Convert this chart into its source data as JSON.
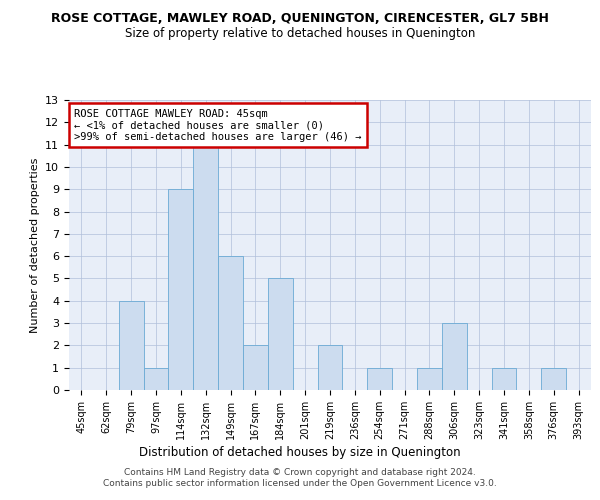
{
  "title": "ROSE COTTAGE, MAWLEY ROAD, QUENINGTON, CIRENCESTER, GL7 5BH",
  "subtitle": "Size of property relative to detached houses in Quenington",
  "xlabel": "Distribution of detached houses by size in Quenington",
  "ylabel": "Number of detached properties",
  "categories": [
    "45sqm",
    "62sqm",
    "79sqm",
    "97sqm",
    "114sqm",
    "132sqm",
    "149sqm",
    "167sqm",
    "184sqm",
    "201sqm",
    "219sqm",
    "236sqm",
    "254sqm",
    "271sqm",
    "288sqm",
    "306sqm",
    "323sqm",
    "341sqm",
    "358sqm",
    "376sqm",
    "393sqm"
  ],
  "values": [
    0,
    0,
    4,
    1,
    9,
    11,
    6,
    2,
    5,
    0,
    2,
    0,
    1,
    0,
    1,
    3,
    0,
    1,
    0,
    1,
    0
  ],
  "bar_color": "#ccdcef",
  "bar_edge_color": "#6aaad4",
  "ylim": [
    0,
    13
  ],
  "yticks": [
    0,
    1,
    2,
    3,
    4,
    5,
    6,
    7,
    8,
    9,
    10,
    11,
    12,
    13
  ],
  "annotation_text": "ROSE COTTAGE MAWLEY ROAD: 45sqm\n← <1% of detached houses are smaller (0)\n>99% of semi-detached houses are larger (46) →",
  "annotation_box_color": "#ffffff",
  "annotation_box_edge": "#cc0000",
  "bg_color": "#e8eef8",
  "grid_color": "#b0bfda",
  "footer_line1": "Contains HM Land Registry data © Crown copyright and database right 2024.",
  "footer_line2": "Contains public sector information licensed under the Open Government Licence v3.0."
}
